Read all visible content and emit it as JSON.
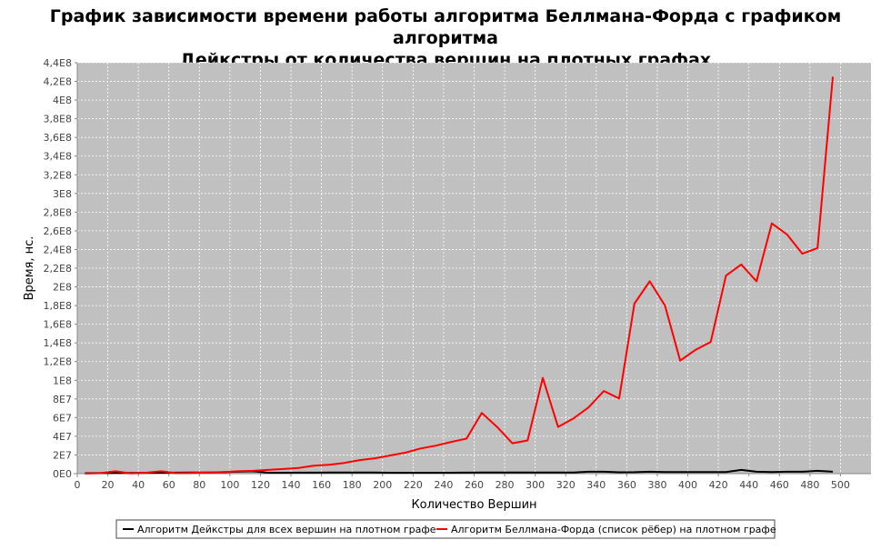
{
  "chart_data": {
    "type": "line",
    "title_line1": "График зависимости времени работы алгоритма Беллмана-Форда с графиком алгоритма",
    "title_line2": "Дейкстры от количества вершин на плотных графах",
    "xlabel": "Количество Вершин",
    "ylabel": "Время, нс.",
    "xlim": [
      0,
      520
    ],
    "ylim": [
      0,
      440000000
    ],
    "x_ticks": [
      0,
      20,
      40,
      60,
      80,
      100,
      120,
      140,
      160,
      180,
      200,
      220,
      240,
      260,
      280,
      300,
      320,
      340,
      360,
      380,
      400,
      420,
      440,
      460,
      480,
      500
    ],
    "y_ticks": [
      {
        "v": 0,
        "label": "0E0"
      },
      {
        "v": 20000000,
        "label": "2E7"
      },
      {
        "v": 40000000,
        "label": "4E7"
      },
      {
        "v": 60000000,
        "label": "6E7"
      },
      {
        "v": 80000000,
        "label": "8E7"
      },
      {
        "v": 100000000,
        "label": "1E8"
      },
      {
        "v": 120000000,
        "label": "1,2E8"
      },
      {
        "v": 140000000,
        "label": "1,4E8"
      },
      {
        "v": 160000000,
        "label": "1,6E8"
      },
      {
        "v": 180000000,
        "label": "1,8E8"
      },
      {
        "v": 200000000,
        "label": "2E8"
      },
      {
        "v": 220000000,
        "label": "2,2E8"
      },
      {
        "v": 240000000,
        "label": "2,4E8"
      },
      {
        "v": 260000000,
        "label": "2,6E8"
      },
      {
        "v": 280000000,
        "label": "2,8E8"
      },
      {
        "v": 300000000,
        "label": "3E8"
      },
      {
        "v": 320000000,
        "label": "3,2E8"
      },
      {
        "v": 340000000,
        "label": "3,4E8"
      },
      {
        "v": 360000000,
        "label": "3,6E8"
      },
      {
        "v": 380000000,
        "label": "3,8E8"
      },
      {
        "v": 400000000,
        "label": "4E8"
      },
      {
        "v": 420000000,
        "label": "4,2E8"
      },
      {
        "v": 440000000,
        "label": "4,4E8"
      }
    ],
    "grid": true,
    "legend_position": "bottom",
    "colors": {
      "plot_bg": "#c0c0c0",
      "grid": "#ffffff"
    },
    "series": [
      {
        "name": "Алгоритм Дейкстры для всех вершин на плотном графе",
        "color": "#000000",
        "x": [
          5,
          15,
          25,
          35,
          45,
          55,
          65,
          75,
          85,
          95,
          105,
          115,
          125,
          135,
          145,
          155,
          165,
          175,
          185,
          195,
          205,
          215,
          225,
          235,
          245,
          255,
          265,
          275,
          285,
          295,
          305,
          315,
          325,
          335,
          345,
          355,
          365,
          375,
          385,
          395,
          405,
          415,
          425,
          435,
          445,
          455,
          465,
          475,
          485,
          495
        ],
        "y": [
          500000,
          600000,
          700000,
          800000,
          900000,
          1000000,
          1100000,
          1200000,
          1300000,
          1500000,
          2000000,
          2500000,
          1000000,
          1000000,
          1100000,
          1100000,
          1200000,
          1200000,
          1300000,
          1300000,
          1000000,
          1000000,
          1000000,
          1000000,
          1000000,
          1100000,
          1200000,
          1200000,
          1200000,
          1200000,
          1200000,
          1300000,
          1300000,
          2000000,
          2000000,
          1500000,
          1600000,
          2000000,
          1700000,
          1700000,
          1700000,
          1700000,
          1800000,
          4000000,
          2000000,
          1800000,
          2000000,
          2000000,
          3000000,
          2000000
        ]
      },
      {
        "name": "Алгоритм Беллмана-Форда (список рёбер) на плотном графе",
        "color": "#ff0000",
        "x": [
          5,
          15,
          25,
          35,
          45,
          55,
          65,
          75,
          85,
          95,
          105,
          115,
          125,
          135,
          145,
          155,
          165,
          175,
          185,
          195,
          205,
          215,
          225,
          235,
          245,
          255,
          265,
          275,
          285,
          295,
          305,
          315,
          325,
          335,
          345,
          355,
          365,
          375,
          385,
          395,
          405,
          415,
          425,
          435,
          445,
          455,
          465,
          475,
          485,
          495
        ],
        "y": [
          100000,
          500000,
          2500000,
          300000,
          1000000,
          2500000,
          500000,
          800000,
          1200000,
          1800000,
          2500000,
          3000000,
          4000000,
          5000000,
          6000000,
          8500000,
          9500000,
          11500000,
          14500000,
          16500000,
          19500000,
          22500000,
          27000000,
          30000000,
          34000000,
          37500000,
          65000000,
          50000000,
          32500000,
          35500000,
          102500000,
          50000000,
          59000000,
          71000000,
          88500000,
          80500000,
          182000000,
          206000000,
          180000000,
          121000000,
          132500000,
          141000000,
          212000000,
          224000000,
          206000000,
          268000000,
          256000000,
          235500000,
          241500000,
          425000000
        ]
      }
    ]
  }
}
